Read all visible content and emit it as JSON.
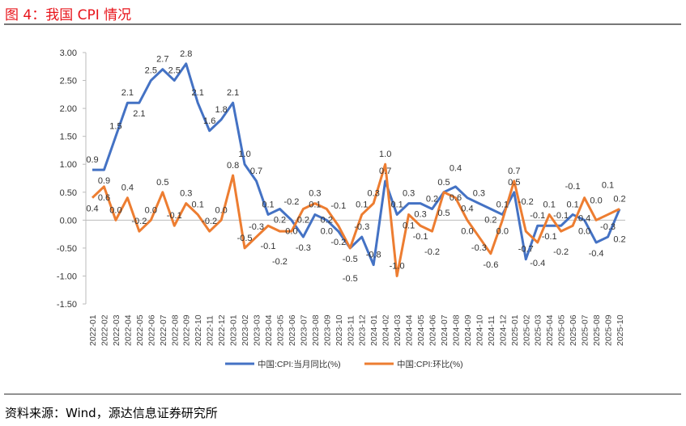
{
  "title": "图 4：我国 CPI 情况",
  "source": "资料来源：Wind，源达信息证券研究所",
  "chart_data": {
    "type": "line",
    "title": "",
    "ylim": [
      -1.5,
      3.0
    ],
    "yticks": [
      "3.00",
      "2.50",
      "2.00",
      "1.50",
      "1.00",
      "0.50",
      "0.00",
      "-0.50",
      "-1.00",
      "-1.50"
    ],
    "grid": false,
    "legend_position": "bottom",
    "categories": [
      "2022-01",
      "2022-02",
      "2022-03",
      "2022-04",
      "2022-05",
      "2022-06",
      "2022-07",
      "2022-08",
      "2022-09",
      "2022-10",
      "2022-11",
      "2022-12",
      "2023-01",
      "2023-02",
      "2023-03",
      "2023-04",
      "2023-05",
      "2023-06",
      "2023-07",
      "2023-08",
      "2023-09",
      "2023-10",
      "2023-11",
      "2023-12",
      "2024-01",
      "2024-02",
      "2024-03",
      "2024-04",
      "2024-05",
      "2024-06",
      "2024-07",
      "2024-08",
      "2024-09",
      "2024-10",
      "2024-11",
      "2024-12",
      "2025-01",
      "2025-02",
      "2025-03",
      "2025-04",
      "2025-05",
      "2025-06",
      "2025-07",
      "2025-08",
      "2025-09",
      "2025-10"
    ],
    "series": [
      {
        "name": "中国:CPI:当月同比(%)",
        "color": "#4472c4",
        "values": [
          0.9,
          0.9,
          1.5,
          2.1,
          2.1,
          2.5,
          2.7,
          2.5,
          2.8,
          2.1,
          1.6,
          1.8,
          2.1,
          1.0,
          0.7,
          0.1,
          0.2,
          0.0,
          -0.3,
          0.1,
          0.0,
          -0.2,
          -0.5,
          -0.3,
          -0.8,
          0.7,
          0.1,
          0.3,
          0.3,
          0.2,
          0.5,
          0.6,
          0.4,
          0.3,
          0.2,
          0.1,
          0.5,
          -0.7,
          -0.1,
          -0.1,
          -0.1,
          0.1,
          0.0,
          -0.4,
          -0.3,
          0.2
        ]
      },
      {
        "name": "中国:CPI:环比(%)",
        "color": "#ed7d31",
        "values": [
          0.4,
          0.6,
          0.0,
          0.4,
          -0.2,
          0.0,
          0.5,
          -0.1,
          0.3,
          0.1,
          -0.2,
          0.0,
          0.8,
          -0.5,
          -0.3,
          -0.1,
          -0.2,
          -0.2,
          0.2,
          0.3,
          0.2,
          -0.1,
          -0.5,
          0.1,
          0.3,
          1.0,
          -1.0,
          0.1,
          -0.1,
          -0.2,
          0.5,
          0.4,
          0.0,
          -0.3,
          -0.6,
          0.0,
          0.7,
          -0.2,
          -0.4,
          0.1,
          -0.2,
          -0.1,
          0.4,
          0.0,
          0.1,
          0.2
        ]
      }
    ]
  }
}
